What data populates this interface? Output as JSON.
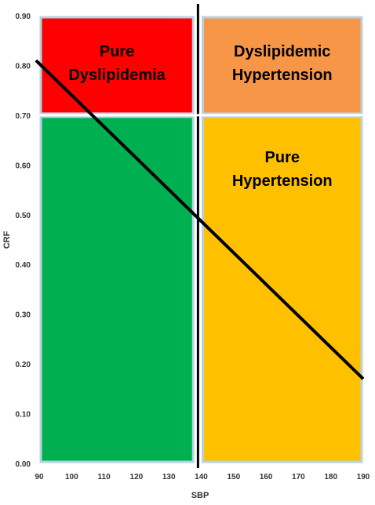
{
  "chart_data": {
    "type": "line",
    "title": "",
    "xlabel": "SBP",
    "ylabel": "CRF",
    "xlim": [
      90,
      190
    ],
    "ylim": [
      0.0,
      0.9
    ],
    "x_ticks": [
      "90",
      "100",
      "110",
      "120",
      "130",
      "140",
      "150",
      "160",
      "170",
      "180",
      "190"
    ],
    "y_ticks": [
      "0.00",
      "0.10",
      "0.20",
      "0.30",
      "0.40",
      "0.50",
      "0.60",
      "0.70",
      "0.80",
      "0.90"
    ],
    "grid": false,
    "regions": [
      {
        "label_lines": [
          "Pure",
          "Dyslipidemia"
        ],
        "x": [
          90,
          138
        ],
        "y": [
          0.7,
          0.9
        ],
        "fill": "#FF0000"
      },
      {
        "label_lines": [
          "Dyslipidemic",
          "Hypertension"
        ],
        "x": [
          140,
          190
        ],
        "y": [
          0.7,
          0.9
        ],
        "fill": "#F79646"
      },
      {
        "label_lines": [],
        "x": [
          90,
          138
        ],
        "y": [
          0.0,
          0.7
        ],
        "fill": "#00B050"
      },
      {
        "label_lines": [
          "Pure",
          "Hypertension"
        ],
        "x": [
          140,
          190
        ],
        "y": [
          0.0,
          0.7
        ],
        "fill": "#FFC000"
      }
    ],
    "threshold_lines": [
      {
        "orientation": "vertical",
        "x": 139
      },
      {
        "orientation": "horizontal",
        "y": 0.7
      }
    ],
    "series": [
      {
        "x": [
          89,
          190
        ],
        "y": [
          0.81,
          0.17
        ]
      }
    ]
  }
}
